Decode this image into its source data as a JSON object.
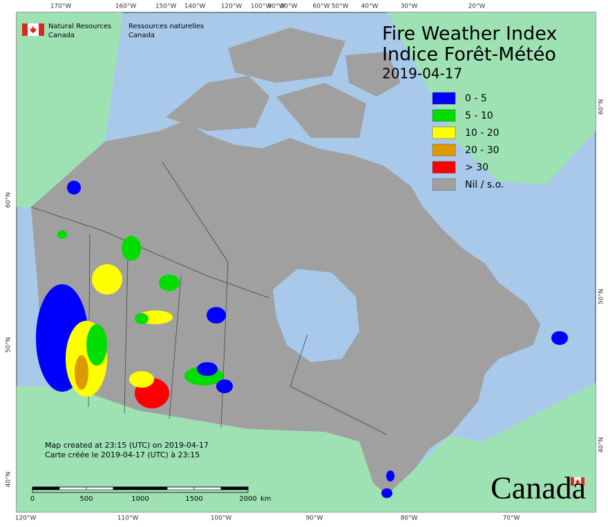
{
  "header": {
    "department_en": [
      "Natural Resources",
      "Canada"
    ],
    "department_fr": [
      "Ressources naturelles",
      "Canada"
    ]
  },
  "title": {
    "line1": "Fire Weather Index",
    "line2": "Indice Forêt-Météo",
    "date": "2019-04-17"
  },
  "legend": [
    {
      "label": "0 - 5",
      "color": "#0000ff"
    },
    {
      "label": "5 - 10",
      "color": "#00dd00"
    },
    {
      "label": "10 - 20",
      "color": "#ffff00"
    },
    {
      "label": "20 - 30",
      "color": "#dd9900"
    },
    {
      "label": "> 30",
      "color": "#ff0000"
    },
    {
      "label": "Nil / s.o.",
      "color": "#a0a0a0"
    }
  ],
  "credits": [
    "Map created at 23:15 (UTC) on 2019-04-17",
    "Carte créée le 2019-04-17 (UTC) à 23:15"
  ],
  "scale_bar": {
    "ticks": [
      0,
      500,
      1000,
      1500,
      2000
    ],
    "unit": "km"
  },
  "graticule": {
    "top": [
      "170°W",
      "160°W",
      "150°W",
      "140°W",
      "120°W",
      "100°W",
      "90°W",
      "80°W",
      "60°W",
      "50°W",
      "40°W",
      "30°W",
      "20°W"
    ],
    "bottom": [
      "120°W",
      "110°W",
      "100°W",
      "90°W",
      "80°W",
      "70°W"
    ],
    "left": [
      "60°N",
      "50°N",
      "40°N"
    ],
    "right": [
      "60°N",
      "50°N",
      "40°N"
    ]
  },
  "wordmark": "Canada"
}
